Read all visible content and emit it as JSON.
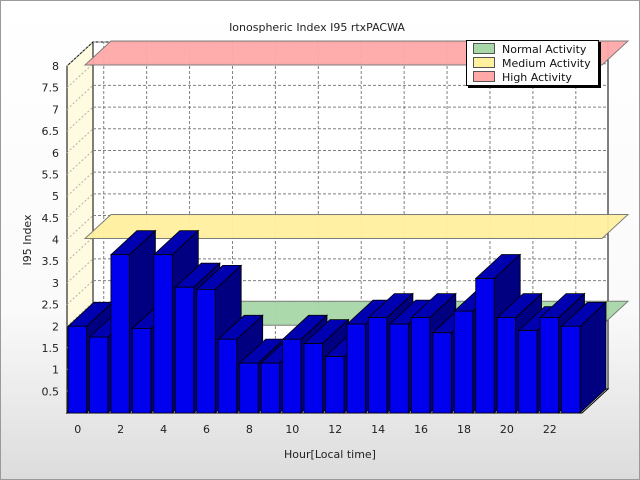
{
  "chart_data": {
    "type": "bar",
    "title": "Ionospheric Index I95 rtxPACWA",
    "xlabel": "Hour[Local time]",
    "ylabel": "I95 Index",
    "ylim": [
      0,
      8
    ],
    "y_ticks": [
      "0.5",
      "1",
      "1.5",
      "2",
      "2.5",
      "3",
      "3.5",
      "4",
      "4.5",
      "5",
      "5.5",
      "6",
      "6.5",
      "7",
      "7.5",
      "8"
    ],
    "x_ticks": [
      "0",
      "2",
      "4",
      "6",
      "8",
      "10",
      "12",
      "14",
      "16",
      "18",
      "20",
      "22"
    ],
    "grid": true,
    "legend_position": "top-right",
    "categories": [
      0,
      1,
      2,
      3,
      4,
      5,
      6,
      7,
      8,
      9,
      10,
      11,
      12,
      13,
      14,
      15,
      16,
      17,
      18,
      19,
      20,
      21,
      22,
      23
    ],
    "values": [
      2.0,
      1.75,
      3.65,
      1.95,
      3.65,
      2.9,
      2.85,
      1.7,
      1.15,
      1.15,
      1.7,
      1.6,
      1.3,
      2.05,
      2.2,
      2.05,
      2.2,
      1.85,
      2.35,
      3.1,
      2.2,
      1.9,
      2.2,
      2.0
    ],
    "bar_color": "#0000ee",
    "activity_bands": [
      {
        "name": "Normal Activity",
        "level": 2.0,
        "color": "#a8d8a8"
      },
      {
        "name": "Medium Activity",
        "level": 4.0,
        "color": "#fff0a0"
      },
      {
        "name": "High Activity",
        "level": 8.0,
        "color": "#ffa8a8"
      }
    ]
  }
}
